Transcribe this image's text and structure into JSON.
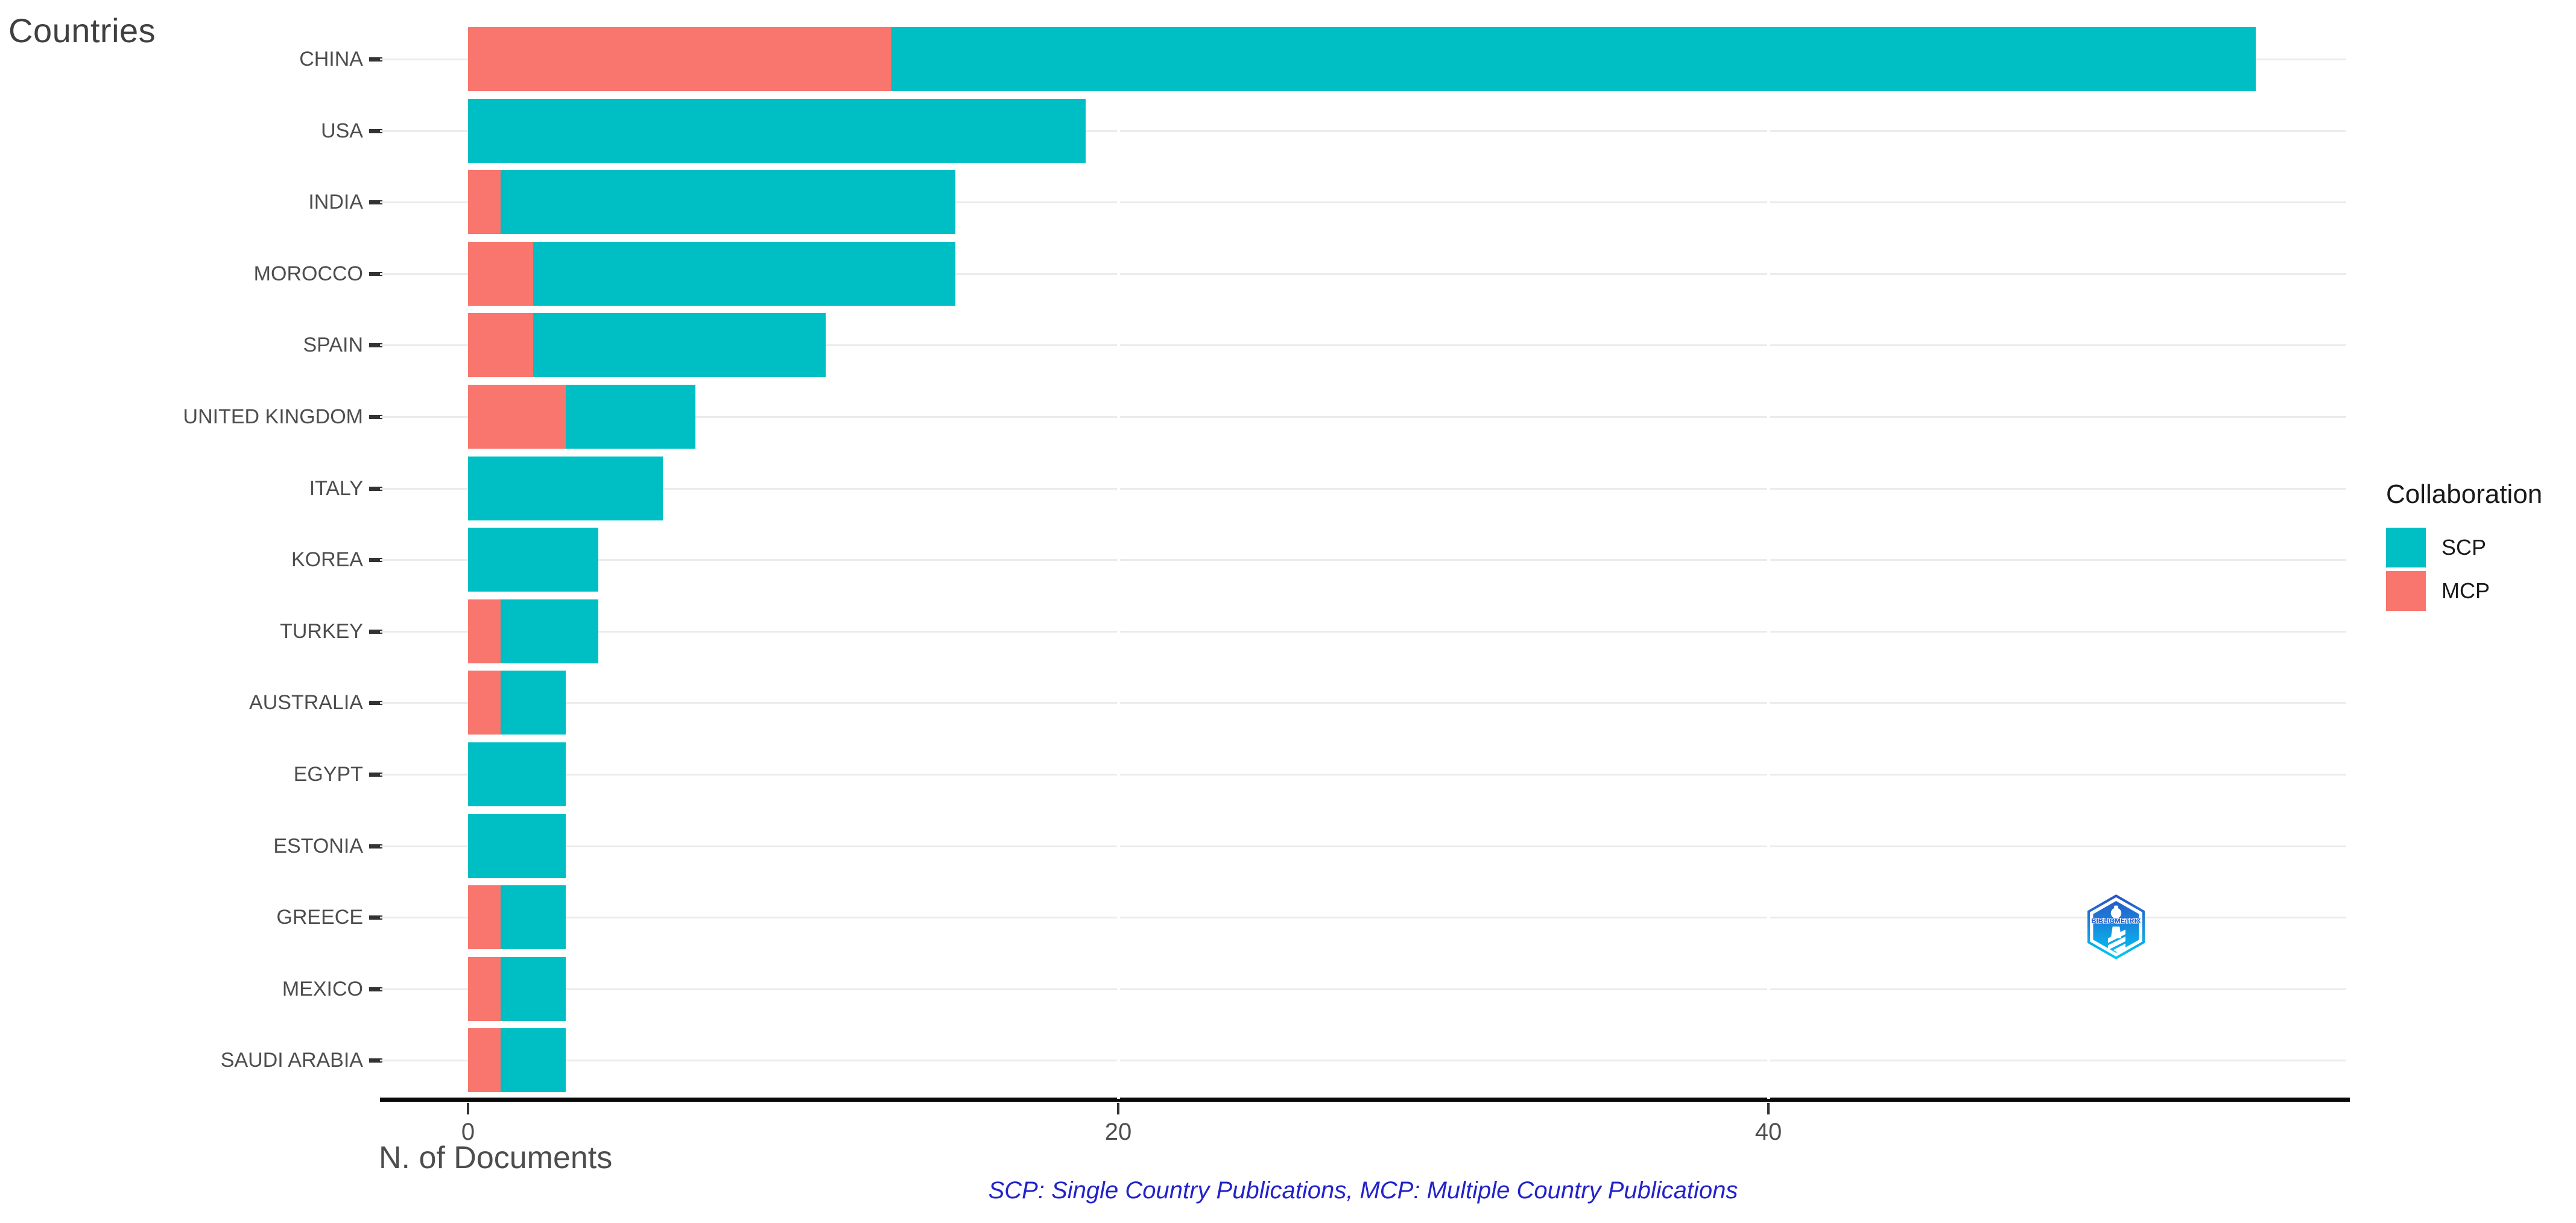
{
  "chart_data": {
    "type": "bar",
    "orientation": "horizontal",
    "stacked": true,
    "stack_order": [
      "MCP",
      "SCP"
    ],
    "title": "Countries",
    "xlabel": "N. of Documents",
    "ylabel": "",
    "categories": [
      "CHINA",
      "USA",
      "INDIA",
      "MOROCCO",
      "SPAIN",
      "UNITED KINGDOM",
      "ITALY",
      "KOREA",
      "TURKEY",
      "AUSTRALIA",
      "EGYPT",
      "ESTONIA",
      "GREECE",
      "MEXICO",
      "SAUDI ARABIA"
    ],
    "series": [
      {
        "name": "SCP",
        "color": "#00BFC4",
        "values": [
          42,
          19,
          14,
          13,
          9,
          4,
          6,
          4,
          3,
          2,
          3,
          3,
          2,
          2,
          2
        ]
      },
      {
        "name": "MCP",
        "color": "#F8766D",
        "values": [
          13,
          0,
          1,
          2,
          2,
          3,
          0,
          0,
          1,
          1,
          0,
          0,
          1,
          1,
          1
        ]
      }
    ],
    "totals": [
      55,
      19,
      15,
      15,
      11,
      7,
      6,
      4,
      4,
      3,
      3,
      3,
      3,
      3,
      3
    ],
    "x_ticks": [
      "0",
      "20",
      "40"
    ],
    "x_tick_values": [
      0,
      20,
      40
    ],
    "xlim": [
      0,
      57.8
    ],
    "grid": "horizontal-only",
    "legend": {
      "title": "Collaboration",
      "position": "right",
      "items": [
        {
          "label": "SCP",
          "color": "#00BFC4"
        },
        {
          "label": "MCP",
          "color": "#F8766D"
        }
      ]
    },
    "caption": "SCP: Single Country Publications, MCP: Multiple Country Publications",
    "caption_color": "#2222CC",
    "axis_text_color": "#4d4d4d",
    "title_color": "#404040"
  },
  "logo": {
    "text": "BIBLIOMETRIX"
  }
}
